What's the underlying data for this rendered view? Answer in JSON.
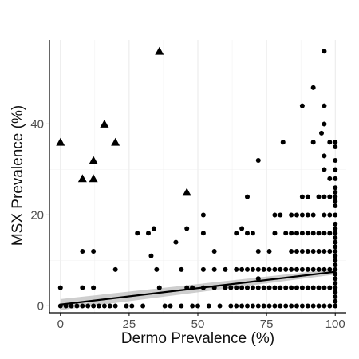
{
  "chart_data": {
    "type": "scatter",
    "xlabel": "Dermo Prevalence (%)",
    "ylabel": "MSX Prevalence (%)",
    "xlim": [
      -4,
      104
    ],
    "ylim": [
      -1.5,
      58.5
    ],
    "x_ticks": [
      0,
      25,
      50,
      75,
      100
    ],
    "x_tick_labels": [
      "0",
      "25",
      "50",
      "75",
      "100"
    ],
    "y_ticks": [
      0,
      20,
      40
    ],
    "y_tick_labels": [
      "0",
      "20",
      "40"
    ],
    "grid": true,
    "series": [
      {
        "marker": "circle",
        "color": "#000000",
        "points": [
          [
            0,
            4
          ],
          [
            0,
            0
          ],
          [
            2,
            0
          ],
          [
            4,
            0
          ],
          [
            6,
            0
          ],
          [
            8,
            0
          ],
          [
            8,
            12
          ],
          [
            8,
            4
          ],
          [
            10,
            0
          ],
          [
            12,
            0
          ],
          [
            12,
            4
          ],
          [
            12,
            12
          ],
          [
            14,
            0
          ],
          [
            16,
            0
          ],
          [
            18,
            0
          ],
          [
            20,
            8
          ],
          [
            20,
            0
          ],
          [
            24,
            0
          ],
          [
            26,
            0
          ],
          [
            28,
            16
          ],
          [
            30,
            0
          ],
          [
            32,
            16
          ],
          [
            33,
            11
          ],
          [
            34,
            17
          ],
          [
            35,
            8
          ],
          [
            36,
            4
          ],
          [
            38,
            0
          ],
          [
            40,
            0
          ],
          [
            42,
            14
          ],
          [
            44,
            8
          ],
          [
            44,
            0
          ],
          [
            46,
            17
          ],
          [
            46,
            4
          ],
          [
            48,
            4
          ],
          [
            48,
            0
          ],
          [
            50,
            0
          ],
          [
            52,
            20
          ],
          [
            52,
            16
          ],
          [
            52,
            8
          ],
          [
            52,
            4
          ],
          [
            54,
            0
          ],
          [
            56,
            12
          ],
          [
            56,
            8
          ],
          [
            56,
            4
          ],
          [
            58,
            0
          ],
          [
            60,
            4
          ],
          [
            60,
            8
          ],
          [
            62,
            0
          ],
          [
            62,
            4
          ],
          [
            64,
            16
          ],
          [
            64,
            8
          ],
          [
            64,
            4
          ],
          [
            64,
            0
          ],
          [
            66,
            17
          ],
          [
            66,
            8
          ],
          [
            66,
            4
          ],
          [
            66,
            0
          ],
          [
            68,
            24
          ],
          [
            68,
            16
          ],
          [
            68,
            8
          ],
          [
            68,
            4
          ],
          [
            68,
            0
          ],
          [
            70,
            16
          ],
          [
            70,
            8
          ],
          [
            70,
            4
          ],
          [
            70,
            0
          ],
          [
            72,
            32
          ],
          [
            72,
            12
          ],
          [
            72,
            8
          ],
          [
            72,
            6
          ],
          [
            72,
            4
          ],
          [
            72,
            0
          ],
          [
            74,
            8
          ],
          [
            74,
            4
          ],
          [
            74,
            0
          ],
          [
            76,
            12
          ],
          [
            76,
            8
          ],
          [
            76,
            4
          ],
          [
            76,
            0
          ],
          [
            78,
            20
          ],
          [
            78,
            16
          ],
          [
            78,
            8
          ],
          [
            78,
            4
          ],
          [
            78,
            0
          ],
          [
            80,
            20
          ],
          [
            80,
            8
          ],
          [
            80,
            4
          ],
          [
            80,
            0
          ],
          [
            81,
            36
          ],
          [
            82,
            16
          ],
          [
            82,
            8
          ],
          [
            82,
            4
          ],
          [
            82,
            0
          ],
          [
            84,
            20
          ],
          [
            84,
            16
          ],
          [
            84,
            12
          ],
          [
            84,
            8
          ],
          [
            84,
            4
          ],
          [
            84,
            0
          ],
          [
            86,
            20
          ],
          [
            86,
            16
          ],
          [
            86,
            12
          ],
          [
            86,
            8
          ],
          [
            86,
            4
          ],
          [
            86,
            0
          ],
          [
            88,
            44
          ],
          [
            88,
            24
          ],
          [
            88,
            20
          ],
          [
            88,
            16
          ],
          [
            88,
            12
          ],
          [
            88,
            8
          ],
          [
            88,
            4
          ],
          [
            88,
            0
          ],
          [
            90,
            24
          ],
          [
            90,
            20
          ],
          [
            90,
            16
          ],
          [
            90,
            12
          ],
          [
            90,
            8
          ],
          [
            90,
            4
          ],
          [
            90,
            0
          ],
          [
            92,
            48
          ],
          [
            92,
            36
          ],
          [
            92,
            20
          ],
          [
            92,
            16
          ],
          [
            92,
            12
          ],
          [
            92,
            8
          ],
          [
            92,
            4
          ],
          [
            92,
            0
          ],
          [
            94,
            24
          ],
          [
            94,
            16
          ],
          [
            94,
            12
          ],
          [
            94,
            8
          ],
          [
            94,
            4
          ],
          [
            94,
            0
          ],
          [
            95,
            38
          ],
          [
            96,
            56
          ],
          [
            96,
            44
          ],
          [
            96,
            40
          ],
          [
            96,
            33
          ],
          [
            96,
            30
          ],
          [
            96,
            24
          ],
          [
            96,
            20
          ],
          [
            96,
            16
          ],
          [
            96,
            12
          ],
          [
            96,
            8
          ],
          [
            96,
            4
          ],
          [
            96,
            0
          ],
          [
            98,
            36
          ],
          [
            98,
            28
          ],
          [
            98,
            24
          ],
          [
            98,
            20
          ],
          [
            98,
            16
          ],
          [
            98,
            12
          ],
          [
            98,
            8
          ],
          [
            98,
            4
          ],
          [
            98,
            0
          ],
          [
            100,
            36
          ],
          [
            100,
            35
          ],
          [
            100,
            32
          ],
          [
            100,
            30
          ],
          [
            100,
            28
          ],
          [
            100,
            26
          ],
          [
            100,
            25
          ],
          [
            100,
            24
          ],
          [
            100,
            23
          ],
          [
            100,
            22
          ],
          [
            100,
            20
          ],
          [
            100,
            18
          ],
          [
            100,
            17
          ],
          [
            100,
            16
          ],
          [
            100,
            15
          ],
          [
            100,
            14
          ],
          [
            100,
            13
          ],
          [
            100,
            12
          ],
          [
            100,
            11
          ],
          [
            100,
            10
          ],
          [
            100,
            9
          ],
          [
            100,
            8
          ],
          [
            100,
            7
          ],
          [
            100,
            6
          ],
          [
            100,
            5
          ],
          [
            100,
            4
          ],
          [
            100,
            3
          ],
          [
            100,
            2
          ],
          [
            100,
            1
          ],
          [
            100,
            0
          ]
        ]
      },
      {
        "marker": "triangle",
        "color": "#000000",
        "points": [
          [
            0,
            36
          ],
          [
            8,
            28
          ],
          [
            12,
            32
          ],
          [
            12,
            28
          ],
          [
            16,
            40
          ],
          [
            20,
            36
          ],
          [
            36,
            56
          ],
          [
            46,
            25
          ]
        ]
      }
    ],
    "trend_line": {
      "color": "#000000",
      "band_color": "#bdbdbd",
      "x": [
        0,
        100
      ],
      "y": [
        0.3,
        7.5
      ],
      "band_halfwidth": [
        1.2,
        0.6
      ]
    },
    "colors": {
      "grid": "#e3e3e3",
      "axis": "#000000"
    }
  }
}
